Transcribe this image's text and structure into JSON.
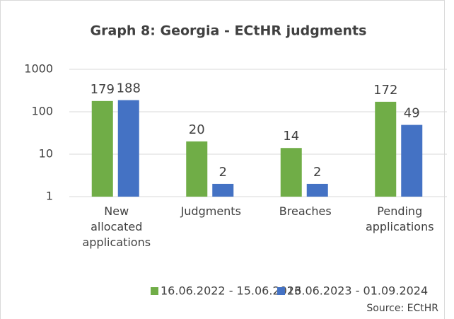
{
  "chart_data": {
    "type": "bar",
    "title": "Graph 8: Georgia - ECtHR judgments",
    "categories": [
      "New allocated applications",
      "Judgments",
      "Breaches",
      "Pending applications"
    ],
    "series": [
      {
        "name": "16.06.2022 - 15.06.2023",
        "color": "#70ad47",
        "values": [
          179,
          20,
          14,
          172
        ]
      },
      {
        "name": "16.06.2023 - 01.09.2024",
        "color": "#4472c4",
        "values": [
          188,
          2,
          2,
          49
        ]
      }
    ],
    "ylim": [
      1,
      1000
    ],
    "yticks": [
      1,
      10,
      100,
      1000
    ],
    "log_scale": true,
    "grid": true,
    "legend": "bottom",
    "source": "Source: ECtHR"
  }
}
